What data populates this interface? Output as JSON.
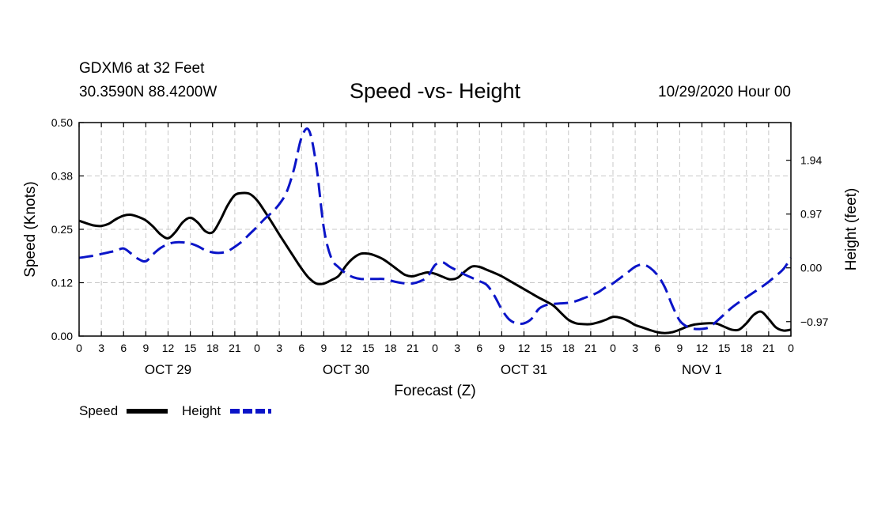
{
  "header": {
    "station": "GDXM6 at 32 Feet",
    "coords": "30.3590N 88.4200W",
    "title": "Speed -vs- Height",
    "datetime": "10/29/2020 Hour 00"
  },
  "chart_data": {
    "type": "line",
    "title": "Speed -vs- Height",
    "xlabel": "Forecast (Z)",
    "ylabel_left": "Speed (Knots)",
    "ylabel_right": "Height (feet)",
    "x_unit": "forecast hour",
    "xlim": [
      0,
      96
    ],
    "ylim_left": [
      0.0,
      0.5
    ],
    "ylim_right": [
      -1.23,
      2.62
    ],
    "grid": true,
    "x_ticks": [
      0,
      3,
      6,
      9,
      12,
      15,
      18,
      21,
      24,
      27,
      30,
      33,
      36,
      39,
      42,
      45,
      48,
      51,
      54,
      57,
      60,
      63,
      66,
      69,
      72,
      75,
      78,
      81,
      84,
      87,
      90,
      93,
      96
    ],
    "x_tick_labels": [
      "0",
      "3",
      "6",
      "9",
      "12",
      "15",
      "18",
      "21",
      "0",
      "3",
      "6",
      "9",
      "12",
      "15",
      "18",
      "21",
      "0",
      "3",
      "6",
      "9",
      "12",
      "15",
      "18",
      "21",
      "0",
      "3",
      "6",
      "9",
      "12",
      "15",
      "18",
      "21",
      "0"
    ],
    "date_labels": [
      {
        "hour": 12,
        "label": "OCT 29"
      },
      {
        "hour": 36,
        "label": "OCT 30"
      },
      {
        "hour": 60,
        "label": "OCT 31"
      },
      {
        "hour": 84,
        "label": "NOV 1"
      }
    ],
    "left_ticks": [
      0.0,
      0.125,
      0.25,
      0.375,
      0.5
    ],
    "left_tick_labels": [
      "0.00",
      "0.12",
      "0.25",
      "0.38",
      "0.50"
    ],
    "right_ticks": [
      -0.97,
      0.0,
      0.97,
      1.94
    ],
    "right_tick_labels": [
      "−0.97",
      "0.00",
      "0.97",
      "1.94"
    ],
    "legend": [
      {
        "name": "Speed",
        "color": "#000000",
        "style": "solid"
      },
      {
        "name": "Height",
        "color": "#0a14c8",
        "style": "dashed"
      }
    ],
    "series": [
      {
        "name": "Speed",
        "axis": "left",
        "color": "#000000",
        "x": [
          0,
          1,
          2,
          3,
          4,
          5,
          6,
          7,
          8,
          9,
          10,
          11,
          12,
          13,
          14,
          15,
          16,
          17,
          18,
          19,
          20,
          21,
          22,
          23,
          24,
          25,
          26,
          27,
          28,
          29,
          30,
          31,
          32,
          33,
          34,
          35,
          36,
          37,
          38,
          39,
          40,
          41,
          42,
          43,
          44,
          45,
          46,
          47,
          48,
          49,
          50,
          51,
          52,
          53,
          54,
          55,
          56,
          57,
          58,
          59,
          60,
          61,
          62,
          63,
          64,
          65,
          66,
          67,
          68,
          69,
          70,
          71,
          72,
          73,
          74,
          75,
          76,
          77,
          78,
          79,
          80,
          81,
          82,
          83,
          84,
          85,
          86,
          87,
          88,
          89,
          90,
          91,
          92,
          93,
          94,
          95,
          96
        ],
        "values": [
          0.27,
          0.264,
          0.259,
          0.258,
          0.263,
          0.274,
          0.282,
          0.284,
          0.279,
          0.271,
          0.256,
          0.238,
          0.229,
          0.244,
          0.267,
          0.277,
          0.266,
          0.246,
          0.243,
          0.27,
          0.305,
          0.33,
          0.335,
          0.333,
          0.318,
          0.293,
          0.266,
          0.238,
          0.211,
          0.184,
          0.158,
          0.136,
          0.123,
          0.123,
          0.131,
          0.141,
          0.165,
          0.183,
          0.193,
          0.193,
          0.188,
          0.18,
          0.168,
          0.155,
          0.143,
          0.14,
          0.145,
          0.149,
          0.146,
          0.139,
          0.133,
          0.136,
          0.151,
          0.163,
          0.162,
          0.155,
          0.148,
          0.14,
          0.13,
          0.12,
          0.11,
          0.1,
          0.09,
          0.081,
          0.071,
          0.054,
          0.038,
          0.03,
          0.028,
          0.028,
          0.032,
          0.038,
          0.045,
          0.043,
          0.036,
          0.026,
          0.02,
          0.014,
          0.009,
          0.007,
          0.009,
          0.015,
          0.022,
          0.027,
          0.029,
          0.03,
          0.029,
          0.022,
          0.015,
          0.015,
          0.03,
          0.05,
          0.057,
          0.04,
          0.02,
          0.013,
          0.015
        ]
      },
      {
        "name": "Height",
        "axis": "right",
        "color": "#0a14c8",
        "x": [
          0,
          1,
          2,
          3,
          4,
          5,
          6,
          7,
          8,
          9,
          10,
          11,
          12,
          13,
          14,
          15,
          16,
          17,
          18,
          19,
          20,
          21,
          22,
          23,
          24,
          25,
          26,
          27,
          28,
          29,
          30,
          31,
          32,
          33,
          34,
          35,
          36,
          37,
          38,
          39,
          40,
          41,
          42,
          43,
          44,
          45,
          46,
          47,
          48,
          49,
          50,
          51,
          52,
          53,
          54,
          55,
          56,
          57,
          58,
          59,
          60,
          61,
          62,
          63,
          64,
          65,
          66,
          67,
          68,
          69,
          70,
          71,
          72,
          73,
          74,
          75,
          76,
          77,
          78,
          79,
          80,
          81,
          82,
          83,
          84,
          85,
          86,
          87,
          88,
          89,
          90,
          91,
          92,
          93,
          94,
          95,
          96
        ],
        "values": [
          0.18,
          0.2,
          0.22,
          0.25,
          0.28,
          0.31,
          0.35,
          0.26,
          0.16,
          0.12,
          0.25,
          0.36,
          0.43,
          0.46,
          0.46,
          0.44,
          0.39,
          0.32,
          0.28,
          0.27,
          0.3,
          0.38,
          0.48,
          0.61,
          0.74,
          0.88,
          1.0,
          1.15,
          1.37,
          1.79,
          2.35,
          2.48,
          1.84,
          0.72,
          0.18,
          0.01,
          -0.1,
          -0.17,
          -0.2,
          -0.2,
          -0.2,
          -0.2,
          -0.23,
          -0.26,
          -0.28,
          -0.28,
          -0.24,
          -0.16,
          0.05,
          0.1,
          0.02,
          -0.05,
          -0.12,
          -0.18,
          -0.24,
          -0.31,
          -0.5,
          -0.75,
          -0.93,
          -1.0,
          -1.0,
          -0.92,
          -0.74,
          -0.67,
          -0.65,
          -0.64,
          -0.63,
          -0.6,
          -0.55,
          -0.5,
          -0.44,
          -0.35,
          -0.28,
          -0.18,
          -0.08,
          0.02,
          0.06,
          0.0,
          -0.13,
          -0.35,
          -0.68,
          -0.95,
          -1.06,
          -1.1,
          -1.1,
          -1.07,
          -0.96,
          -0.84,
          -0.72,
          -0.62,
          -0.53,
          -0.44,
          -0.35,
          -0.25,
          -0.14,
          -0.02,
          0.18
        ]
      }
    ]
  }
}
